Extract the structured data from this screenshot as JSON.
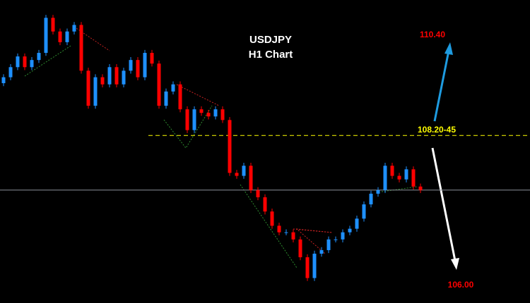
{
  "chart_data": {
    "type": "candlestick",
    "title": "USDJPY",
    "subtitle": "H1 Chart",
    "ylim": [
      105.4,
      110.5
    ],
    "up_color": "#1e90ff",
    "down_color": "#ff0000",
    "ohlc": [
      [
        109.1,
        109.25,
        109.05,
        109.2
      ],
      [
        109.2,
        109.42,
        109.15,
        109.37
      ],
      [
        109.37,
        109.6,
        109.32,
        109.55
      ],
      [
        109.55,
        109.6,
        109.32,
        109.37
      ],
      [
        109.37,
        109.54,
        109.32,
        109.49
      ],
      [
        109.49,
        109.66,
        109.44,
        109.61
      ],
      [
        109.61,
        110.25,
        109.56,
        110.2
      ],
      [
        110.2,
        110.25,
        109.92,
        109.97
      ],
      [
        109.97,
        110.02,
        109.74,
        109.79
      ],
      [
        109.79,
        110.02,
        109.74,
        109.97
      ],
      [
        109.97,
        110.13,
        109.92,
        110.08
      ],
      [
        110.08,
        110.13,
        109.26,
        109.31
      ],
      [
        109.31,
        109.36,
        108.67,
        108.72
      ],
      [
        108.72,
        109.25,
        108.67,
        109.2
      ],
      [
        109.2,
        109.25,
        109.03,
        109.08
      ],
      [
        109.08,
        109.42,
        109.03,
        109.37
      ],
      [
        109.37,
        109.42,
        109.03,
        109.08
      ],
      [
        109.08,
        109.36,
        109.03,
        109.31
      ],
      [
        109.31,
        109.54,
        109.26,
        109.49
      ],
      [
        109.49,
        109.54,
        109.15,
        109.2
      ],
      [
        109.2,
        109.66,
        109.15,
        109.61
      ],
      [
        109.61,
        109.66,
        109.38,
        109.43
      ],
      [
        109.43,
        109.48,
        108.67,
        108.72
      ],
      [
        108.72,
        109.01,
        108.67,
        108.96
      ],
      [
        108.96,
        109.13,
        108.91,
        109.08
      ],
      [
        109.08,
        109.13,
        108.61,
        108.66
      ],
      [
        108.66,
        108.71,
        108.26,
        108.31
      ],
      [
        108.31,
        108.71,
        108.26,
        108.66
      ],
      [
        108.66,
        108.71,
        108.55,
        108.6
      ],
      [
        108.6,
        108.65,
        108.49,
        108.54
      ],
      [
        108.54,
        108.71,
        108.49,
        108.66
      ],
      [
        108.66,
        108.71,
        108.43,
        108.48
      ],
      [
        108.48,
        108.53,
        107.54,
        107.59
      ],
      [
        107.59,
        107.64,
        107.49,
        107.54
      ],
      [
        107.54,
        107.76,
        107.49,
        107.71
      ],
      [
        107.71,
        107.76,
        107.25,
        107.3
      ],
      [
        107.3,
        107.35,
        107.13,
        107.18
      ],
      [
        107.18,
        107.23,
        106.89,
        106.94
      ],
      [
        106.94,
        106.99,
        106.65,
        106.7
      ],
      [
        106.7,
        106.75,
        106.54,
        106.59
      ],
      [
        106.59,
        106.64,
        106.54,
        106.59
      ],
      [
        106.59,
        106.64,
        106.42,
        106.47
      ],
      [
        106.47,
        106.52,
        106.12,
        106.17
      ],
      [
        106.17,
        106.22,
        105.77,
        105.82
      ],
      [
        105.82,
        106.28,
        105.77,
        106.23
      ],
      [
        106.23,
        106.34,
        106.18,
        106.29
      ],
      [
        106.29,
        106.52,
        106.24,
        106.47
      ],
      [
        106.47,
        106.52,
        106.42,
        106.47
      ],
      [
        106.47,
        106.64,
        106.42,
        106.59
      ],
      [
        106.59,
        106.7,
        106.54,
        106.65
      ],
      [
        106.65,
        106.87,
        106.6,
        106.82
      ],
      [
        106.82,
        107.11,
        106.77,
        107.06
      ],
      [
        107.06,
        107.29,
        107.01,
        107.24
      ],
      [
        107.24,
        107.35,
        107.19,
        107.3
      ],
      [
        107.3,
        107.76,
        107.25,
        107.71
      ],
      [
        107.71,
        107.76,
        107.49,
        107.54
      ],
      [
        107.54,
        107.59,
        107.43,
        107.48
      ],
      [
        107.48,
        107.7,
        107.43,
        107.65
      ],
      [
        107.65,
        107.7,
        107.31,
        107.36
      ],
      [
        107.36,
        107.41,
        107.25,
        107.3
      ]
    ],
    "price_line": 107.3,
    "price_line_color": "#8a8f99",
    "level": {
      "value": 108.22,
      "label": "108.20-45",
      "color": "#ffff00"
    },
    "targets": [
      {
        "label": "110.40",
        "color": "#ff0000"
      },
      {
        "label": "106.00",
        "color": "#ff0000"
      }
    ]
  }
}
